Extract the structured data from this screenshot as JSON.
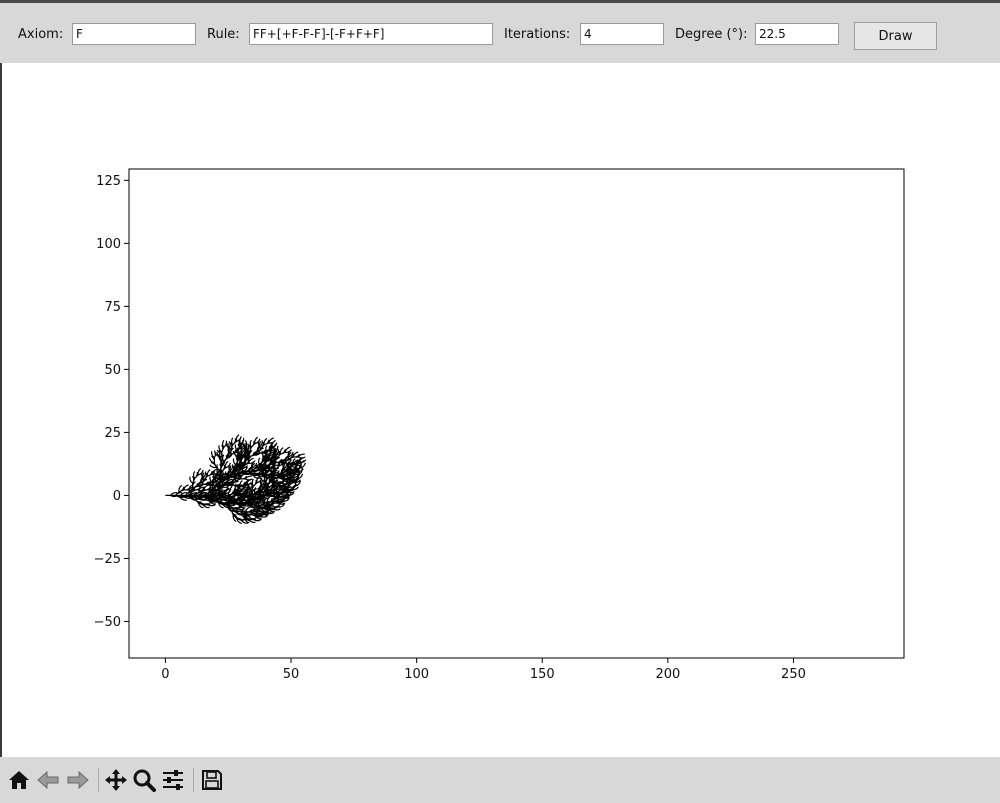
{
  "controls": {
    "axiom_label": "Axiom:",
    "axiom_value": "F",
    "rule_label": "Rule:",
    "rule_value": "FF+[+F-F-F]-[-F+F+F]",
    "iterations_label": "Iterations:",
    "iterations_value": "4",
    "degree_label": "Degree (°):",
    "degree_value": "22.5",
    "draw_label": "Draw"
  },
  "toolbar": {
    "home": "home-icon",
    "back": "back-arrow-icon",
    "forward": "forward-arrow-icon",
    "pan": "move-icon",
    "zoom": "zoom-icon",
    "configure": "sliders-icon",
    "save": "save-icon"
  },
  "chart_data": {
    "type": "line",
    "description_source": "L-system plant, axiom F, rule FF+[+F-F-F]-[-F+F+F], 4 iterations, 22.5 degrees",
    "xlim": [
      -14.5,
      294
    ],
    "ylim": [
      -64.5,
      129.5
    ],
    "xticks": [
      0,
      50,
      100,
      150,
      200,
      250
    ],
    "yticks": [
      -50,
      -25,
      0,
      25,
      50,
      75,
      100,
      125
    ],
    "grid": false,
    "line_color": "#000000",
    "title": "",
    "xlabel": "",
    "ylabel": ""
  }
}
